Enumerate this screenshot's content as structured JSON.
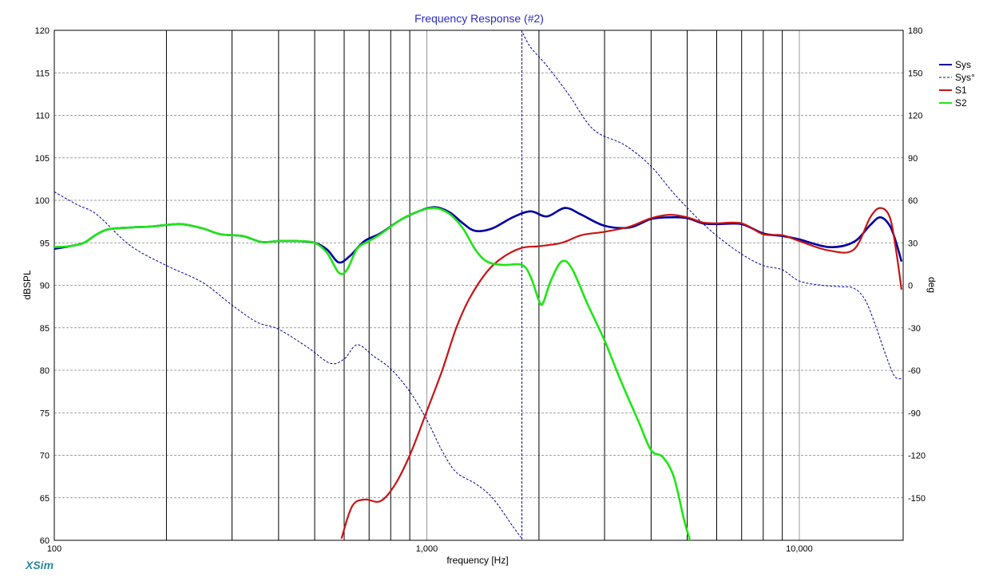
{
  "brand": "XSim",
  "chart_data": {
    "type": "line",
    "title": "Frequency Response (#2)",
    "xlabel": "frequency [Hz]",
    "ylabel": "dBSPL",
    "y2label": "deg",
    "xscale": "log",
    "xlim": [
      100,
      19000
    ],
    "ylim": [
      60,
      120
    ],
    "y2lim": [
      -180,
      180
    ],
    "grid": true,
    "legend_position": "right",
    "x_ticks": [
      {
        "value": 100,
        "label": "100"
      },
      {
        "value": 1000,
        "label": "1,000"
      },
      {
        "value": 10000,
        "label": "10,000"
      }
    ],
    "y_ticks": [
      {
        "value": 120,
        "label": "120"
      },
      {
        "value": 115,
        "label": "115"
      },
      {
        "value": 110,
        "label": "110"
      },
      {
        "value": 105,
        "label": "105"
      },
      {
        "value": 100,
        "label": "100"
      },
      {
        "value": 95,
        "label": "95"
      },
      {
        "value": 90,
        "label": "90"
      },
      {
        "value": 85,
        "label": "85"
      },
      {
        "value": 80,
        "label": "80"
      },
      {
        "value": 75,
        "label": "75"
      },
      {
        "value": 70,
        "label": "70"
      },
      {
        "value": 65,
        "label": "65"
      },
      {
        "value": 60,
        "label": "60"
      }
    ],
    "y2_ticks": [
      {
        "value": 180,
        "label": "180"
      },
      {
        "value": 150,
        "label": "150"
      },
      {
        "value": 120,
        "label": "120"
      },
      {
        "value": 90,
        "label": "90"
      },
      {
        "value": 60,
        "label": "60"
      },
      {
        "value": 30,
        "label": "30"
      },
      {
        "value": 0,
        "label": "0"
      },
      {
        "value": -30,
        "label": "-30"
      },
      {
        "value": -60,
        "label": "-60"
      },
      {
        "value": -90,
        "label": "-90"
      },
      {
        "value": -120,
        "label": "-120"
      },
      {
        "value": -150,
        "label": "-150"
      }
    ],
    "series": [
      {
        "name": "Sys",
        "color": "#0000a0",
        "style": "solid",
        "width": 2.6,
        "axis": "left",
        "x": [
          100,
          110,
          120,
          130,
          140,
          160,
          180,
          200,
          220,
          250,
          280,
          320,
          360,
          400,
          450,
          500,
          540,
          580,
          620,
          680,
          750,
          850,
          950,
          1050,
          1150,
          1250,
          1350,
          1500,
          1700,
          1900,
          2100,
          2350,
          2600,
          3000,
          3500,
          4000,
          4500,
          5000,
          5500,
          6000,
          7000,
          8000,
          9000,
          10000,
          12000,
          14000,
          15500,
          16500,
          17500,
          18200,
          18800
        ],
        "values": [
          94.3,
          94.6,
          95.0,
          96.0,
          96.6,
          96.8,
          96.9,
          97.1,
          97.2,
          96.7,
          96.0,
          95.8,
          95.1,
          95.2,
          95.2,
          95.0,
          94.2,
          92.7,
          93.4,
          95.2,
          96.1,
          97.7,
          98.7,
          99.2,
          98.6,
          97.3,
          96.4,
          96.7,
          98.0,
          98.7,
          98.1,
          99.1,
          98.3,
          97.0,
          96.8,
          97.8,
          98.0,
          97.9,
          97.3,
          97.2,
          97.2,
          96.1,
          95.8,
          95.4,
          94.5,
          95.1,
          97.1,
          98.0,
          97.0,
          95.0,
          92.8
        ]
      },
      {
        "name": "Sys°",
        "color": "#0000a0",
        "style": "dashed",
        "width": 1,
        "axis": "right",
        "x": [
          100,
          115,
          130,
          160,
          200,
          250,
          300,
          350,
          400,
          480,
          550,
          600,
          650,
          720,
          800,
          900,
          1000,
          1100,
          1200,
          1350,
          1500,
          1700,
          1790,
          1810,
          1900,
          2100,
          2400,
          2800,
          3400,
          4000,
          4600,
          5300,
          6000,
          7000,
          8000,
          9000,
          10000,
          11500,
          13000,
          14000,
          15000,
          16000,
          17000,
          18000,
          18800
        ],
        "values": [
          66,
          57,
          50,
          28,
          14,
          2,
          -14,
          -26,
          -31,
          -44,
          -55,
          -52,
          -42,
          -50,
          -59,
          -75,
          -95,
          -117,
          -132,
          -140,
          -150,
          -170,
          -178,
          178,
          168,
          155,
          135,
          110,
          99,
          84,
          65,
          48,
          35,
          22,
          14,
          11,
          3,
          0,
          -1,
          -2,
          -10,
          -28,
          -48,
          -64,
          -66
        ]
      },
      {
        "name": "S1",
        "color": "#c81414",
        "style": "solid",
        "width": 2.2,
        "axis": "left",
        "x": [
          590,
          630,
          680,
          750,
          820,
          900,
          1000,
          1100,
          1200,
          1300,
          1450,
          1600,
          1800,
          2000,
          2300,
          2600,
          3000,
          3500,
          4000,
          4500,
          5000,
          5500,
          6000,
          7000,
          8000,
          9000,
          10000,
          12000,
          14000,
          15500,
          16500,
          17500,
          18200,
          18800
        ],
        "values": [
          60.2,
          64.0,
          64.8,
          64.6,
          66.5,
          70.0,
          75.2,
          80.0,
          85.0,
          88.4,
          91.6,
          93.3,
          94.4,
          94.6,
          95.0,
          95.9,
          96.3,
          96.9,
          97.9,
          98.3,
          98.0,
          97.4,
          97.3,
          97.3,
          96.0,
          95.9,
          95.2,
          94.1,
          94.2,
          98.0,
          99.1,
          98.0,
          94.0,
          89.5
        ]
      },
      {
        "name": "S2",
        "color": "#1ee614",
        "style": "solid",
        "width": 2.6,
        "axis": "left",
        "x": [
          100,
          110,
          120,
          130,
          140,
          160,
          180,
          200,
          220,
          250,
          280,
          320,
          360,
          400,
          450,
          500,
          540,
          580,
          610,
          650,
          700,
          750,
          850,
          950,
          1050,
          1150,
          1250,
          1350,
          1450,
          1600,
          1800,
          1900,
          2000,
          2050,
          2150,
          2300,
          2450,
          2700,
          3000,
          3300,
          3700,
          4000,
          4300,
          4600,
          4900,
          5100
        ],
        "values": [
          94.5,
          94.6,
          95.0,
          96.0,
          96.6,
          96.8,
          96.9,
          97.1,
          97.2,
          96.7,
          96.0,
          95.8,
          95.1,
          95.2,
          95.2,
          95.0,
          93.8,
          91.5,
          91.8,
          94.3,
          95.2,
          96.0,
          97.7,
          98.7,
          99.1,
          98.4,
          96.7,
          94.2,
          92.8,
          92.4,
          92.4,
          91.0,
          88.2,
          87.9,
          90.5,
          92.8,
          92.0,
          87.8,
          83.5,
          79.0,
          74.0,
          70.6,
          69.8,
          67.5,
          62.5,
          59.8
        ]
      }
    ]
  }
}
